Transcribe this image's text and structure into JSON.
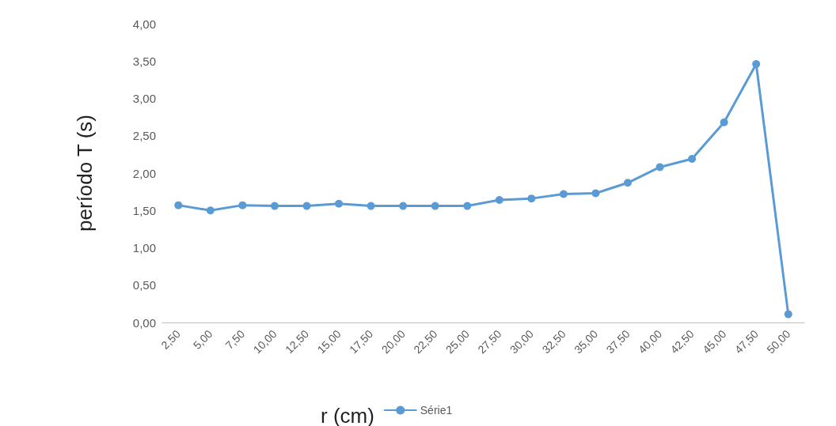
{
  "chart_data": {
    "type": "line",
    "xlabel": "r (cm)",
    "ylabel": "período T (s)",
    "categories": [
      "2,50",
      "5,00",
      "7,50",
      "10,00",
      "12,50",
      "15,00",
      "17,50",
      "20,00",
      "22,50",
      "25,00",
      "27,50",
      "30,00",
      "32,50",
      "35,00",
      "37,50",
      "40,00",
      "42,50",
      "45,00",
      "47,50",
      "50,00"
    ],
    "series": [
      {
        "name": "Série1",
        "color": "#5b9bd5",
        "values": [
          1.57,
          1.5,
          1.57,
          1.56,
          1.56,
          1.59,
          1.56,
          1.56,
          1.56,
          1.56,
          1.64,
          1.66,
          1.72,
          1.73,
          1.87,
          2.08,
          2.19,
          2.68,
          3.46,
          0.11
        ]
      }
    ],
    "ylim": [
      0,
      4
    ],
    "yticks": [
      {
        "value": 0,
        "label": "0,00"
      },
      {
        "value": 0.5,
        "label": "0,50"
      },
      {
        "value": 1,
        "label": "1,00"
      },
      {
        "value": 1.5,
        "label": "1,50"
      },
      {
        "value": 2,
        "label": "2,00"
      },
      {
        "value": 2.5,
        "label": "2,50"
      },
      {
        "value": 3,
        "label": "3,00"
      },
      {
        "value": 3.5,
        "label": "3,50"
      },
      {
        "value": 4,
        "label": "4,00"
      }
    ],
    "grid": false,
    "legend": "bottom",
    "marker": "circle",
    "line_style": "solid"
  }
}
